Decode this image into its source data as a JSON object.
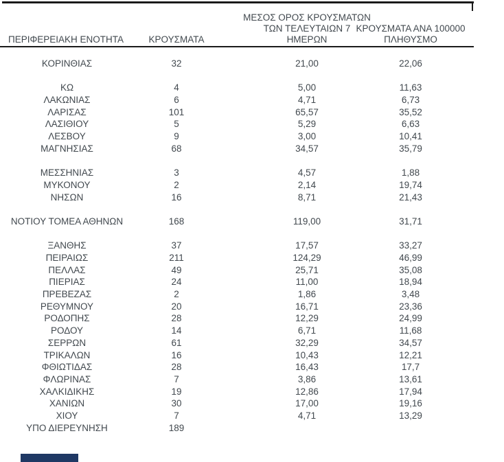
{
  "page": {
    "background": "#ffffff"
  },
  "colors": {
    "text": "#41484e",
    "rule": "#1a1a1a",
    "bottom_bar": "#1f3864"
  },
  "table": {
    "header": {
      "region": "ΠΕΡΙΦΕΡΕΙΑΚΗ ΕΝΟΤΗΤΑ",
      "cases": "ΚΡΟΥΣΜΑΤΑ",
      "avg7_lines": [
        "ΜΕΣΟΣ ΟΡΟΣ ΚΡΟΥΣΜΑΤΩΝ",
        "ΤΩΝ ΤΕΛΕΥΤΑΙΩΝ 7",
        "ΗΜΕΡΩΝ"
      ],
      "per100k_lines": [
        "ΚΡΟΥΣΜΑΤΑ ΑΝΑ 100000",
        "ΠΛΗΘΥΣΜΟ"
      ]
    },
    "rows": [
      {
        "region": "ΚΟΡΙΝΘΙΑΣ",
        "cases": "32",
        "avg7": "21,00",
        "per100k": "22,06",
        "gap_after": true
      },
      {
        "region": "ΚΩ",
        "cases": "4",
        "avg7": "5,00",
        "per100k": "11,63",
        "gap_after": false
      },
      {
        "region": "ΛΑΚΩΝΙΑΣ",
        "cases": "6",
        "avg7": "4,71",
        "per100k": "6,73",
        "gap_after": false
      },
      {
        "region": "ΛΑΡΙΣΑΣ",
        "cases": "101",
        "avg7": "65,57",
        "per100k": "35,52",
        "gap_after": false
      },
      {
        "region": "ΛΑΣΙΘΙΟΥ",
        "cases": "5",
        "avg7": "5,29",
        "per100k": "6,63",
        "gap_after": false
      },
      {
        "region": "ΛΕΣΒΟΥ",
        "cases": "9",
        "avg7": "3,00",
        "per100k": "10,41",
        "gap_after": false
      },
      {
        "region": "ΜΑΓΝΗΣΙΑΣ",
        "cases": "68",
        "avg7": "34,57",
        "per100k": "35,79",
        "gap_after": true
      },
      {
        "region": "ΜΕΣΣΗΝΙΑΣ",
        "cases": "3",
        "avg7": "4,57",
        "per100k": "1,88",
        "gap_after": false
      },
      {
        "region": "ΜΥΚΟΝΟΥ",
        "cases": "2",
        "avg7": "2,14",
        "per100k": "19,74",
        "gap_after": false
      },
      {
        "region": "ΝΗΣΩΝ",
        "cases": "16",
        "avg7": "8,71",
        "per100k": "21,43",
        "gap_after": true
      },
      {
        "region": "ΝΟΤΙΟΥ ΤΟΜΕΑ ΑΘΗΝΩΝ",
        "cases": "168",
        "avg7": "119,00",
        "per100k": "31,71",
        "gap_after": true
      },
      {
        "region": "ΞΑΝΘΗΣ",
        "cases": "37",
        "avg7": "17,57",
        "per100k": "33,27",
        "gap_after": false
      },
      {
        "region": "ΠΕΙΡΑΙΩΣ",
        "cases": "211",
        "avg7": "124,29",
        "per100k": "46,99",
        "gap_after": false
      },
      {
        "region": "ΠΕΛΛΑΣ",
        "cases": "49",
        "avg7": "25,71",
        "per100k": "35,08",
        "gap_after": false
      },
      {
        "region": "ΠΙΕΡΙΑΣ",
        "cases": "24",
        "avg7": "11,00",
        "per100k": "18,94",
        "gap_after": false
      },
      {
        "region": "ΠΡΕΒΕΖΑΣ",
        "cases": "2",
        "avg7": "1,86",
        "per100k": "3,48",
        "gap_after": false
      },
      {
        "region": "ΡΕΘΥΜΝΟΥ",
        "cases": "20",
        "avg7": "16,71",
        "per100k": "23,36",
        "gap_after": false
      },
      {
        "region": "ΡΟΔΟΠΗΣ",
        "cases": "28",
        "avg7": "12,29",
        "per100k": "24,99",
        "gap_after": false
      },
      {
        "region": "ΡΟΔΟΥ",
        "cases": "14",
        "avg7": "6,71",
        "per100k": "11,68",
        "gap_after": false
      },
      {
        "region": "ΣΕΡΡΩΝ",
        "cases": "61",
        "avg7": "32,29",
        "per100k": "34,57",
        "gap_after": false
      },
      {
        "region": "ΤΡΙΚΑΛΩΝ",
        "cases": "16",
        "avg7": "10,43",
        "per100k": "12,21",
        "gap_after": false
      },
      {
        "region": "ΦΘΙΩΤΙΔΑΣ",
        "cases": "28",
        "avg7": "16,43",
        "per100k": "17,7",
        "gap_after": false
      },
      {
        "region": "ΦΛΩΡΙΝΑΣ",
        "cases": "7",
        "avg7": "3,86",
        "per100k": "13,61",
        "gap_after": false
      },
      {
        "region": "ΧΑΛΚΙΔΙΚΗΣ",
        "cases": "19",
        "avg7": "12,86",
        "per100k": "17,94",
        "gap_after": false
      },
      {
        "region": "ΧΑΝΙΩΝ",
        "cases": "30",
        "avg7": "17,00",
        "per100k": "19,16",
        "gap_after": false
      },
      {
        "region": "ΧΙΟΥ",
        "cases": "7",
        "avg7": "4,71",
        "per100k": "13,29",
        "gap_after": false
      },
      {
        "region": "ΥΠΟ ΔΙΕΡΕΥΝΗΣΗ",
        "cases": "189",
        "avg7": "",
        "per100k": "",
        "gap_after": false
      }
    ]
  }
}
